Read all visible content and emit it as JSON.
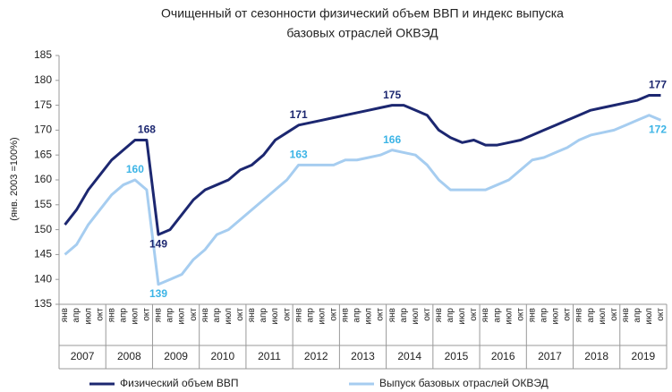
{
  "chart_data": {
    "type": "line",
    "title": "Очищенный от сезонности физический объем ВВП и индекс выпуска",
    "subtitle": "базовых отраслей ОКВЭД",
    "ylabel": "(янв. 2003 =100%)",
    "ylim": [
      135,
      185
    ],
    "yticks": [
      135,
      140,
      145,
      150,
      155,
      160,
      165,
      170,
      175,
      180,
      185
    ],
    "grid": false,
    "categories": [
      "янв",
      "апр",
      "июл",
      "окт",
      "янв",
      "апр",
      "июл",
      "окт",
      "янв",
      "апр",
      "июл",
      "окт",
      "янв",
      "апр",
      "июл",
      "окт",
      "янв",
      "апр",
      "июл",
      "окт",
      "янв",
      "апр",
      "июл",
      "окт",
      "янв",
      "апр",
      "июл",
      "окт",
      "янв",
      "апр",
      "июл",
      "окт",
      "янв",
      "апр",
      "июл",
      "окт",
      "янв",
      "апр",
      "июл",
      "окт",
      "янв",
      "апр",
      "июл",
      "окт",
      "янв",
      "апр",
      "июл",
      "окт",
      "янв",
      "апр",
      "июл",
      "окт"
    ],
    "years": [
      "2007",
      "2008",
      "2009",
      "2010",
      "2011",
      "2012",
      "2013",
      "2014",
      "2015",
      "2016",
      "2017",
      "2018",
      "2019"
    ],
    "series": [
      {
        "name": "Физический объем ВВП",
        "color": "#1c2770",
        "label_color": "#1c2770",
        "values": [
          151,
          154,
          158,
          161,
          164,
          166,
          168,
          168,
          149,
          150,
          153,
          156,
          158,
          159,
          160,
          162,
          163,
          165,
          168,
          169.5,
          171,
          171.5,
          172,
          172.5,
          173,
          173.5,
          174,
          174.5,
          175,
          175,
          174,
          173,
          170,
          168.5,
          167.5,
          168,
          167,
          167,
          167.5,
          168,
          169,
          170,
          171,
          172,
          173,
          174,
          174.5,
          175,
          175.5,
          176,
          177,
          177
        ],
        "value_labels": [
          null,
          null,
          null,
          null,
          null,
          null,
          null,
          "168",
          "149",
          null,
          null,
          null,
          null,
          null,
          null,
          null,
          null,
          null,
          null,
          null,
          "171",
          null,
          null,
          null,
          null,
          null,
          null,
          null,
          "175",
          null,
          null,
          null,
          null,
          null,
          null,
          null,
          null,
          null,
          null,
          null,
          null,
          null,
          null,
          null,
          null,
          null,
          null,
          null,
          null,
          null,
          null,
          "177"
        ]
      },
      {
        "name": "Выпуск базовых отраслей ОКВЭД",
        "color": "#a6cdf0",
        "label_color": "#3cb4e6",
        "values": [
          145,
          147,
          151,
          154,
          157,
          159,
          160,
          158,
          139,
          140,
          141,
          144,
          146,
          149,
          150,
          152,
          154,
          156,
          158,
          160,
          163,
          163,
          163,
          163,
          164,
          164,
          164.5,
          165,
          166,
          165.5,
          165,
          163,
          160,
          158,
          158,
          158,
          158,
          159,
          160,
          162,
          164,
          164.5,
          165.5,
          166.5,
          168,
          169,
          169.5,
          170,
          171,
          172,
          173,
          172
        ],
        "value_labels": [
          null,
          null,
          null,
          null,
          null,
          null,
          "160",
          null,
          "139",
          null,
          null,
          null,
          null,
          null,
          null,
          null,
          null,
          null,
          null,
          null,
          "163",
          null,
          null,
          null,
          null,
          null,
          null,
          null,
          "166",
          null,
          null,
          null,
          null,
          null,
          null,
          null,
          null,
          null,
          null,
          null,
          null,
          null,
          null,
          null,
          null,
          null,
          null,
          null,
          null,
          null,
          null,
          "172"
        ]
      }
    ]
  }
}
